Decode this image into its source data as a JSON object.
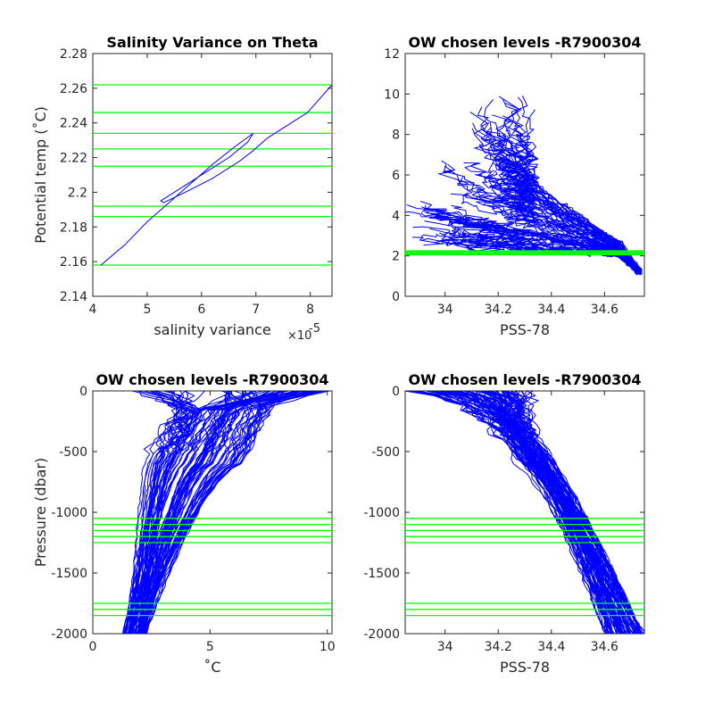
{
  "chart_data": [
    {
      "type": "line",
      "title": "Salinity Variance on Theta",
      "xlabel": "salinity variance",
      "x_exponent_label": "×10",
      "x_exponent_power": "-5",
      "ylabel": "Potential temp (˚C)",
      "xlim": [
        4,
        8.4
      ],
      "ylim": [
        2.14,
        2.28
      ],
      "xticks": [
        "4",
        "5",
        "6",
        "7",
        "8"
      ],
      "yticks": [
        "2.14",
        "2.16",
        "2.18",
        "2.2",
        "2.22",
        "2.24",
        "2.26",
        "2.28"
      ],
      "colors": {
        "profile": "#0000ff",
        "levels": "#00ff00",
        "axes": "#262626"
      },
      "series": [
        {
          "x": [
            4.15,
            4.6,
            5.0,
            5.4,
            5.8,
            6.2,
            6.6,
            6.95,
            6.85,
            6.5,
            6.1,
            5.7,
            5.25,
            5.3,
            5.7,
            6.2,
            6.7,
            6.95,
            7.2,
            7.55,
            7.95,
            8.4
          ],
          "y": [
            2.158,
            2.17,
            2.183,
            2.194,
            2.205,
            2.216,
            2.226,
            2.234,
            2.229,
            2.22,
            2.212,
            2.204,
            2.195,
            2.194,
            2.2,
            2.208,
            2.218,
            2.224,
            2.231,
            2.238,
            2.246,
            2.262
          ]
        }
      ],
      "level_lines": [
        2.262,
        2.246,
        2.234,
        2.225,
        2.215,
        2.192,
        2.186,
        2.158
      ]
    },
    {
      "type": "line",
      "title": "OW chosen levels -R7900304",
      "xlabel": "PSS-78",
      "ylabel": "",
      "xlim": [
        33.85,
        34.75
      ],
      "ylim": [
        0,
        12
      ],
      "xticks": [
        "34",
        "34.2",
        "34.4",
        "34.6"
      ],
      "xtick_values": [
        34,
        34.2,
        34.4,
        34.6
      ],
      "yticks": [
        "0",
        "2",
        "4",
        "6",
        "8",
        "10",
        "12"
      ],
      "level_lines": [
        2.05,
        2.1,
        2.15,
        2.2,
        2.25
      ],
      "profile_count": 80
    },
    {
      "type": "line",
      "title": "OW chosen levels -R7900304",
      "xlabel": "˚C",
      "ylabel": "Pressure (dbar)",
      "xlim": [
        0,
        10.2
      ],
      "ylim": [
        -2000,
        0
      ],
      "xticks": [
        "0",
        "5",
        "10"
      ],
      "yticks": [
        "0",
        "-500",
        "-1000",
        "-1500",
        "-2000"
      ],
      "level_lines": [
        -1050,
        -1100,
        -1150,
        -1200,
        -1250,
        -1750,
        -1800,
        -1850
      ],
      "profile_count": 90
    },
    {
      "type": "line",
      "title": "OW chosen levels -R7900304",
      "xlabel": "PSS-78",
      "ylabel": "",
      "xlim": [
        33.85,
        34.75
      ],
      "ylim": [
        -2000,
        0
      ],
      "xticks": [
        "34",
        "34.2",
        "34.4",
        "34.6"
      ],
      "xtick_values": [
        34,
        34.2,
        34.4,
        34.6
      ],
      "yticks": [
        "0",
        "-500",
        "-1000",
        "-1500",
        "-2000"
      ],
      "level_lines": [
        -1050,
        -1100,
        -1150,
        -1200,
        -1250,
        -1750,
        -1800,
        -1850
      ],
      "profile_count": 90
    }
  ]
}
